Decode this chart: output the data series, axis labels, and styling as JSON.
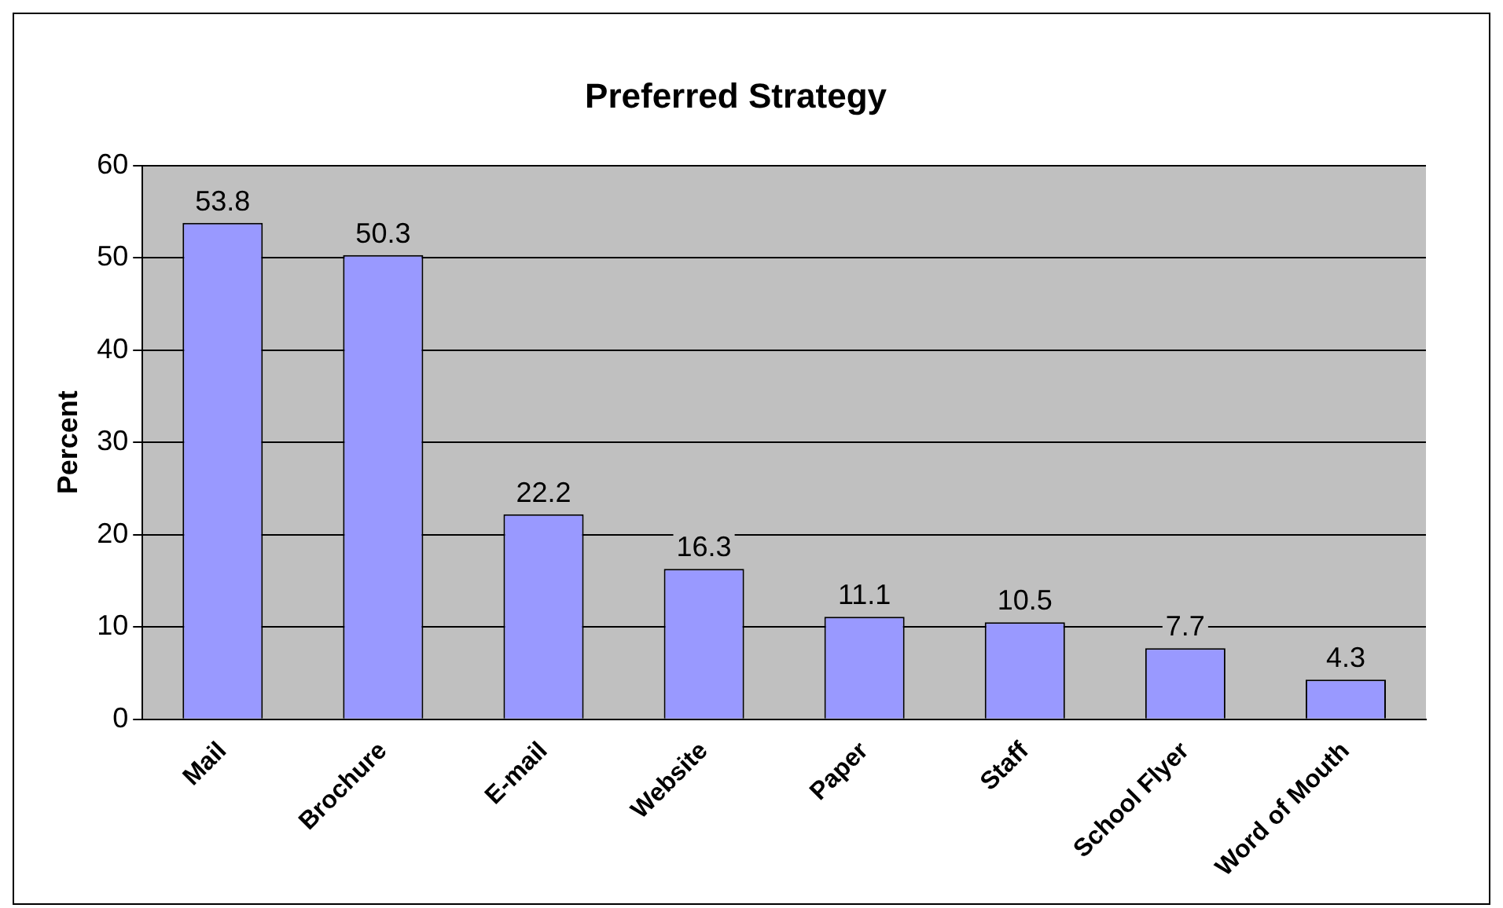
{
  "chart_data": {
    "type": "bar",
    "title": "Preferred Strategy",
    "ylabel": "Percent",
    "categories": [
      "Mail",
      "Brochure",
      "E-mail",
      "Website",
      "Paper",
      "Staff",
      "School Flyer",
      "Word of Mouth"
    ],
    "values": [
      53.8,
      50.3,
      22.2,
      16.3,
      11.1,
      10.5,
      7.7,
      4.3
    ],
    "color": "#9999ff",
    "ylim": [
      0,
      60
    ],
    "yticks": [
      0,
      10,
      20,
      30,
      40,
      50,
      60
    ],
    "grid": "y",
    "legend": false,
    "data_labels": true
  }
}
